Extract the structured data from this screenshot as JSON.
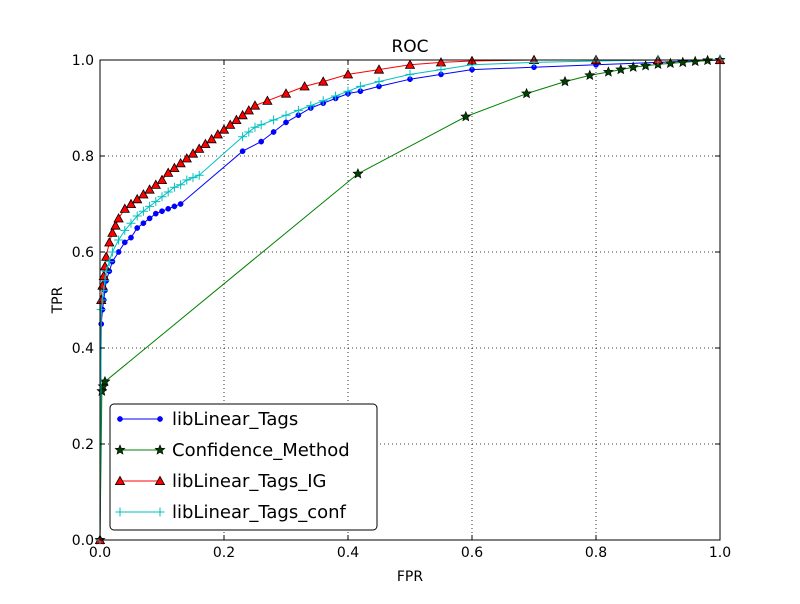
{
  "chart_data": {
    "type": "line",
    "title": "ROC",
    "xlabel": "FPR",
    "ylabel": "TPR",
    "xlim": [
      0.0,
      1.0
    ],
    "ylim": [
      0.0,
      1.0
    ],
    "grid": true,
    "legend_position": "bottom-left",
    "xticks": [
      "0.0",
      "0.2",
      "0.4",
      "0.6",
      "0.8",
      "1.0"
    ],
    "yticks": [
      "0.0",
      "0.2",
      "0.4",
      "0.6",
      "0.8",
      "1.0"
    ],
    "series": [
      {
        "name": "libLinear_Tags",
        "color": "#0000ff",
        "marker": "dot",
        "x": [
          0.0,
          0.002,
          0.004,
          0.006,
          0.008,
          0.01,
          0.015,
          0.02,
          0.03,
          0.04,
          0.05,
          0.06,
          0.07,
          0.08,
          0.09,
          0.1,
          0.11,
          0.12,
          0.13,
          0.23,
          0.26,
          0.28,
          0.3,
          0.32,
          0.34,
          0.36,
          0.38,
          0.4,
          0.42,
          0.45,
          0.5,
          0.55,
          0.6,
          0.7,
          0.8,
          0.9,
          1.0
        ],
        "y": [
          0.0,
          0.45,
          0.48,
          0.5,
          0.52,
          0.54,
          0.56,
          0.58,
          0.6,
          0.62,
          0.63,
          0.65,
          0.66,
          0.67,
          0.68,
          0.685,
          0.69,
          0.695,
          0.7,
          0.81,
          0.83,
          0.85,
          0.87,
          0.885,
          0.9,
          0.91,
          0.92,
          0.93,
          0.935,
          0.945,
          0.96,
          0.97,
          0.98,
          0.985,
          0.99,
          0.995,
          1.0
        ]
      },
      {
        "name": "Confidence_Method",
        "color": "#008000",
        "marker": "star",
        "x": [
          0.0,
          0.003,
          0.005,
          0.008,
          0.416,
          0.59,
          0.688,
          0.75,
          0.79,
          0.82,
          0.84,
          0.86,
          0.88,
          0.9,
          0.92,
          0.94,
          0.96,
          0.98,
          1.0
        ],
        "y": [
          0.0,
          0.31,
          0.32,
          0.33,
          0.763,
          0.882,
          0.93,
          0.955,
          0.968,
          0.975,
          0.98,
          0.985,
          0.988,
          0.991,
          0.993,
          0.995,
          0.997,
          0.999,
          1.0
        ]
      },
      {
        "name": "libLinear_Tags_IG",
        "color": "#ff0000",
        "marker": "triangle",
        "x": [
          0.0,
          0.002,
          0.004,
          0.006,
          0.008,
          0.01,
          0.015,
          0.02,
          0.025,
          0.03,
          0.04,
          0.05,
          0.06,
          0.07,
          0.08,
          0.09,
          0.1,
          0.11,
          0.12,
          0.13,
          0.14,
          0.15,
          0.16,
          0.17,
          0.18,
          0.19,
          0.2,
          0.21,
          0.22,
          0.23,
          0.24,
          0.25,
          0.27,
          0.3,
          0.33,
          0.36,
          0.4,
          0.45,
          0.5,
          0.55,
          0.6,
          0.7,
          0.8,
          0.9,
          1.0
        ],
        "y": [
          0.0,
          0.5,
          0.53,
          0.55,
          0.57,
          0.59,
          0.62,
          0.64,
          0.655,
          0.67,
          0.69,
          0.7,
          0.71,
          0.72,
          0.73,
          0.74,
          0.75,
          0.765,
          0.775,
          0.785,
          0.795,
          0.805,
          0.815,
          0.825,
          0.835,
          0.845,
          0.855,
          0.865,
          0.875,
          0.885,
          0.895,
          0.905,
          0.915,
          0.93,
          0.945,
          0.955,
          0.97,
          0.98,
          0.99,
          0.995,
          0.998,
          1.0,
          1.0,
          1.0,
          1.0
        ]
      },
      {
        "name": "libLinear_Tags_conf",
        "color": "#00bfbf",
        "marker": "plus",
        "x": [
          0.0,
          0.002,
          0.004,
          0.006,
          0.008,
          0.01,
          0.015,
          0.02,
          0.03,
          0.04,
          0.05,
          0.06,
          0.07,
          0.08,
          0.09,
          0.1,
          0.11,
          0.12,
          0.13,
          0.14,
          0.15,
          0.16,
          0.23,
          0.24,
          0.25,
          0.26,
          0.28,
          0.3,
          0.32,
          0.34,
          0.36,
          0.38,
          0.4,
          0.42,
          0.45,
          0.5,
          0.55,
          0.6,
          0.7,
          0.8,
          0.9,
          1.0
        ],
        "y": [
          0.0,
          0.48,
          0.5,
          0.52,
          0.54,
          0.56,
          0.58,
          0.6,
          0.625,
          0.645,
          0.66,
          0.675,
          0.685,
          0.695,
          0.705,
          0.715,
          0.725,
          0.735,
          0.74,
          0.75,
          0.755,
          0.76,
          0.84,
          0.85,
          0.86,
          0.865,
          0.875,
          0.885,
          0.895,
          0.905,
          0.915,
          0.925,
          0.935,
          0.945,
          0.955,
          0.97,
          0.98,
          0.99,
          0.995,
          0.998,
          1.0,
          1.0
        ]
      }
    ]
  }
}
